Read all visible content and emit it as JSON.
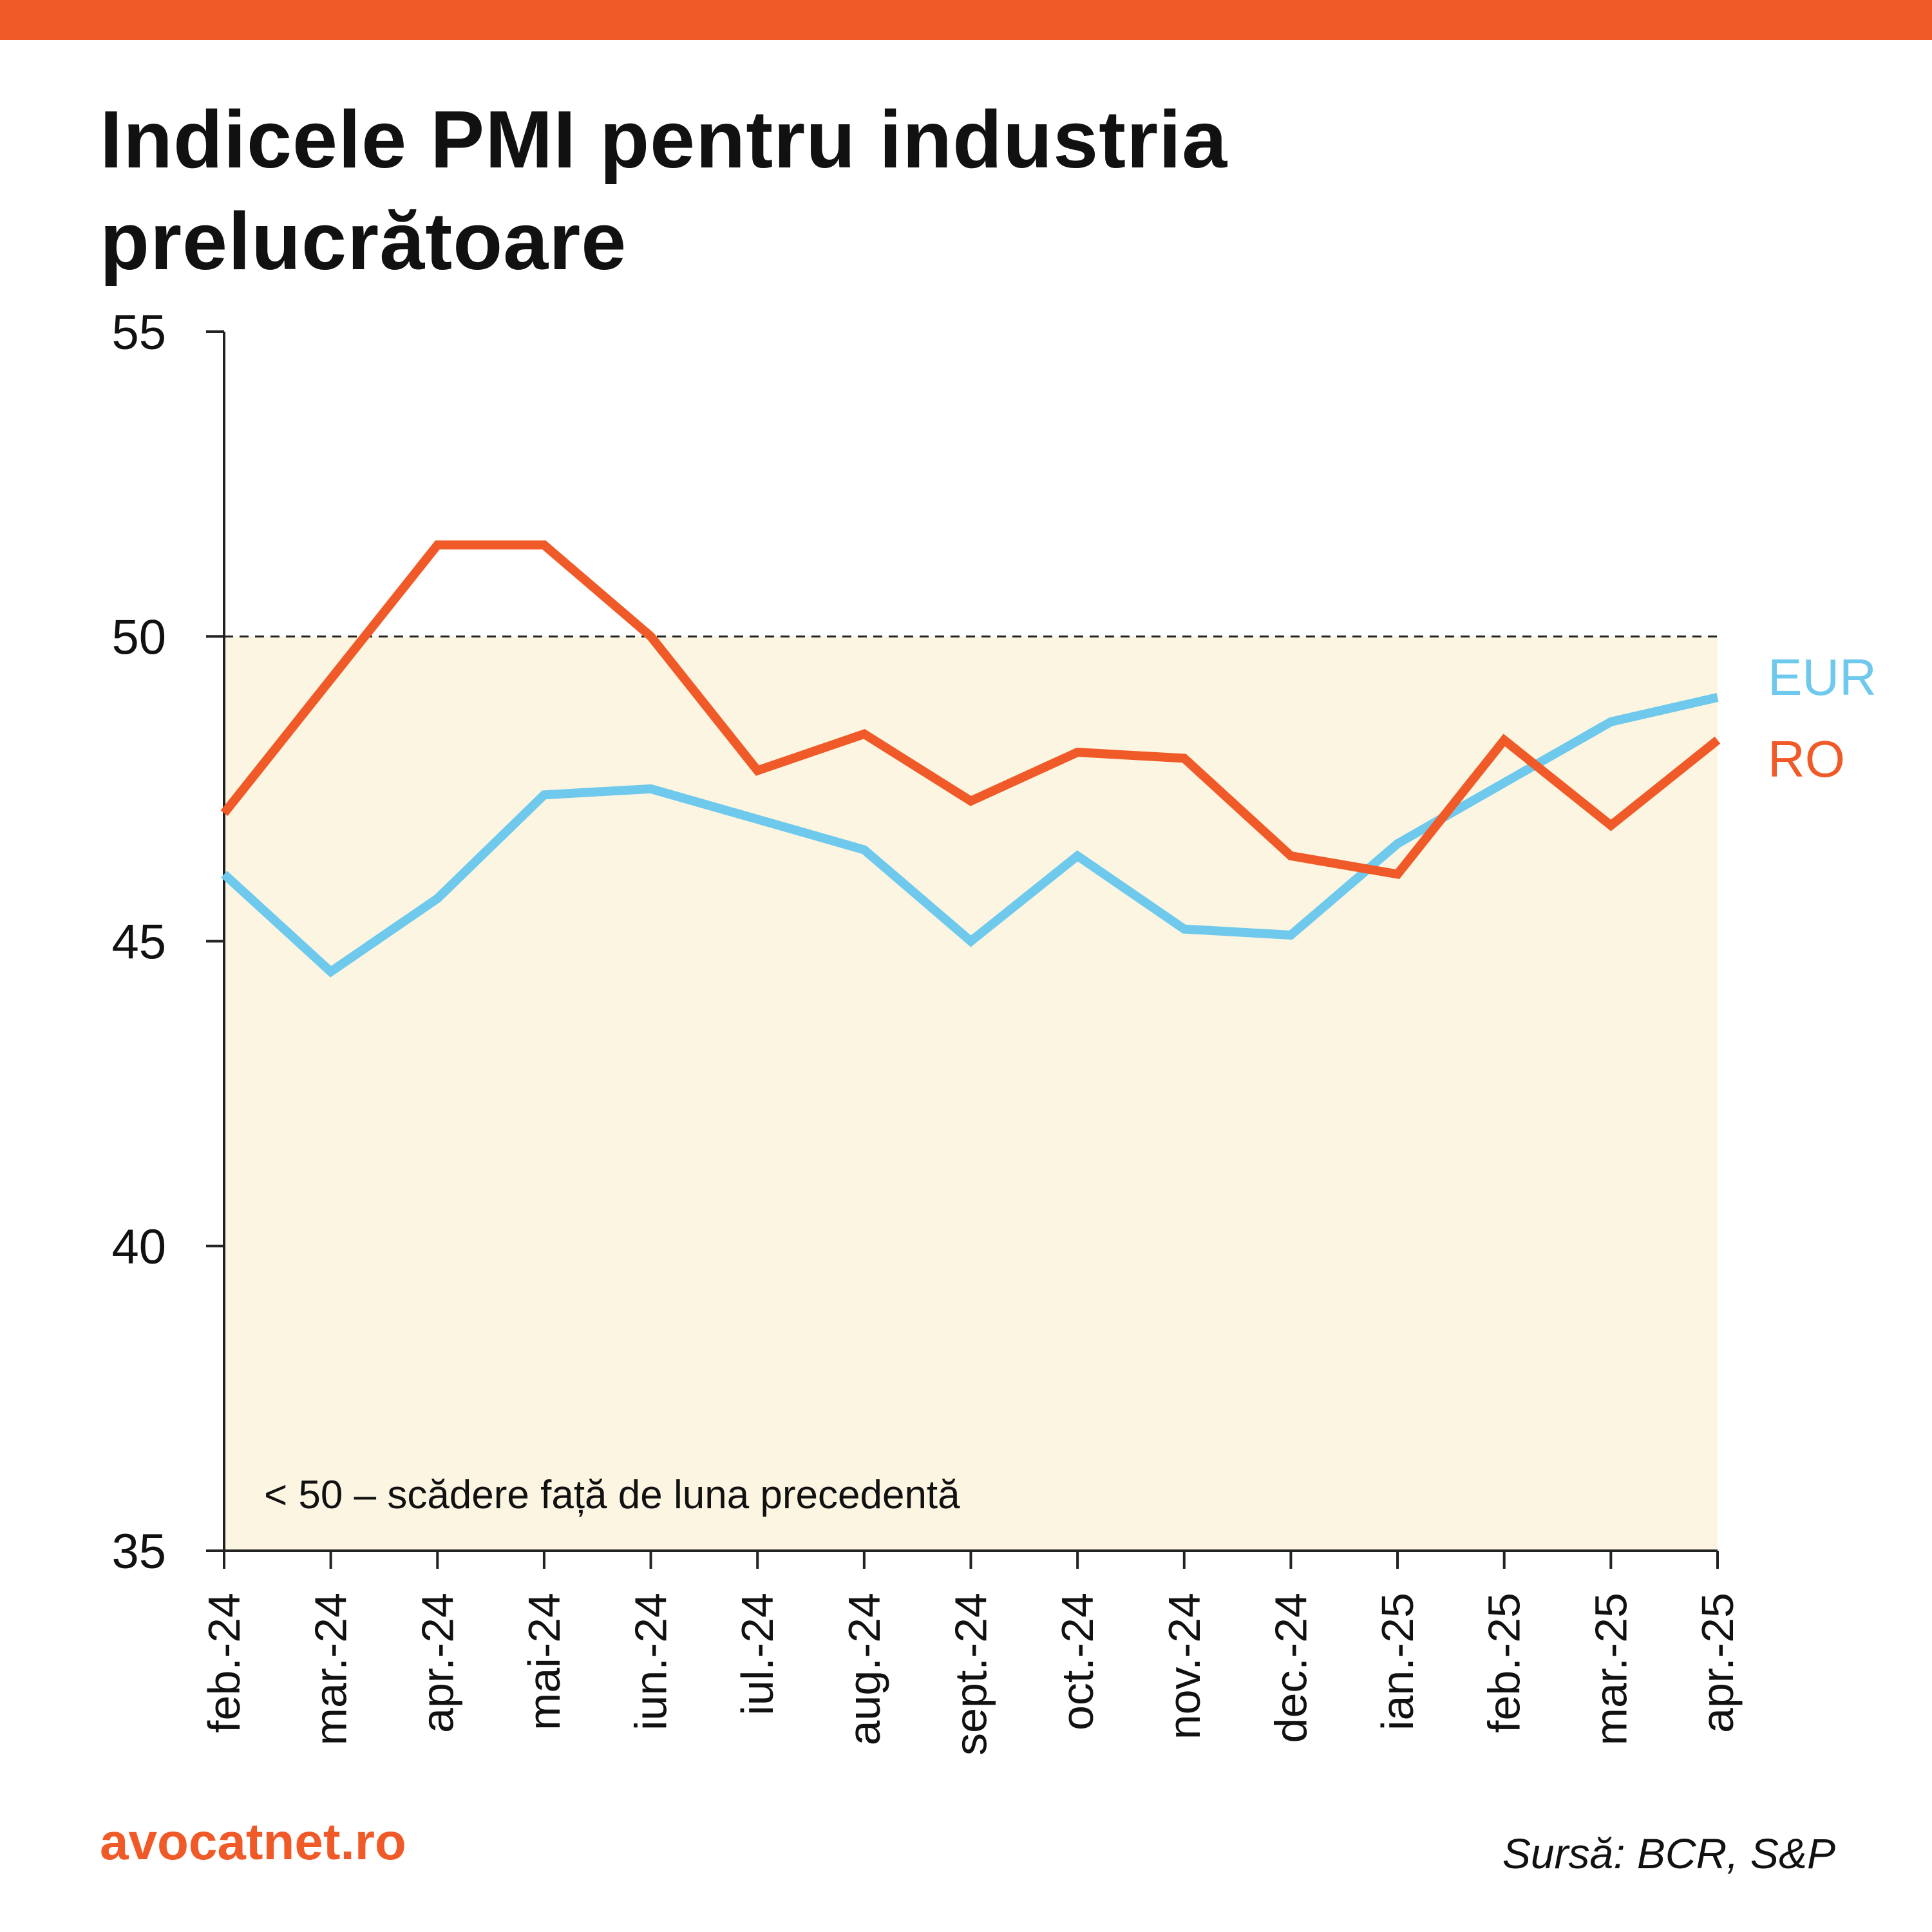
{
  "title": "Indicele PMI pentru industria prelucrătoare",
  "brand": "avocatnet.ro",
  "source": "Sursă: BCR, S&P",
  "colors": {
    "accent": "#f05a28",
    "eur": "#6ec9ec",
    "ro": "#f05a28",
    "shading": "#fbf5e2",
    "axis": "#222222"
  },
  "chart_data": {
    "type": "line",
    "categories": [
      "feb.-24",
      "mar.-24",
      "apr.-24",
      "mai-24",
      "iun.-24",
      "iul.-24",
      "aug.-24",
      "sept.-24",
      "oct.-24",
      "nov.-24",
      "dec.-24",
      "ian.-25",
      "feb.-25",
      "mar.-25",
      "apr.-25"
    ],
    "series": [
      {
        "name": "EUR",
        "color": "#6ec9ec",
        "values": [
          46.1,
          44.5,
          45.7,
          47.4,
          47.5,
          47.0,
          46.5,
          45.0,
          46.4,
          45.2,
          45.1,
          46.6,
          47.6,
          48.6,
          49.0
        ]
      },
      {
        "name": "RO",
        "color": "#f05a28",
        "values": [
          47.1,
          49.3,
          51.5,
          51.5,
          50.0,
          47.8,
          48.4,
          47.3,
          48.1,
          48.0,
          46.4,
          46.1,
          48.3,
          46.9,
          48.3
        ]
      }
    ],
    "ylim": [
      35,
      55
    ],
    "yticks": [
      35,
      40,
      45,
      50,
      55
    ],
    "reference_line": 50,
    "shaded_below": 50,
    "annotation": "< 50 – scădere față de luna precedentă",
    "legend_placement": "right, at line ends",
    "grid": false
  }
}
